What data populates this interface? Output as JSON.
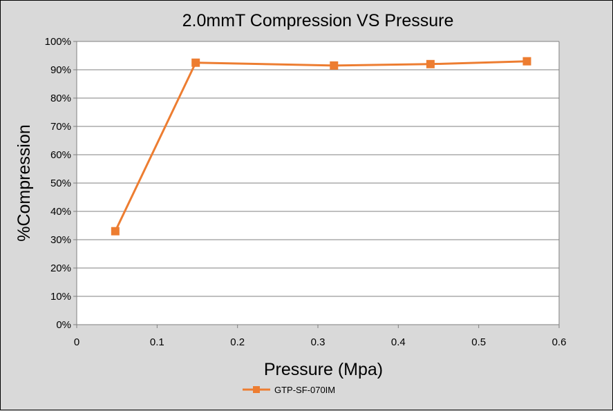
{
  "chart_data": {
    "type": "line",
    "title": "2.0mmT Compression VS Pressure",
    "xlabel": "Pressure (Mpa)",
    "ylabel": "%Compression",
    "xlim": [
      0,
      0.6
    ],
    "ylim": [
      0,
      100
    ],
    "x_ticks": [
      "0",
      "0.1",
      "0.2",
      "0.3",
      "0.4",
      "0.5",
      "0.6"
    ],
    "y_ticks": [
      "0%",
      "10%",
      "20%",
      "30%",
      "40%",
      "50%",
      "60%",
      "70%",
      "80%",
      "90%",
      "100%"
    ],
    "grid": true,
    "legend_position": "bottom",
    "series": [
      {
        "name": "GTP-SF-070IM",
        "color": "#ed7d31",
        "marker": "square",
        "x": [
          0.048,
          0.148,
          0.32,
          0.44,
          0.56
        ],
        "y": [
          33,
          92.5,
          91.5,
          92,
          93
        ]
      }
    ]
  }
}
